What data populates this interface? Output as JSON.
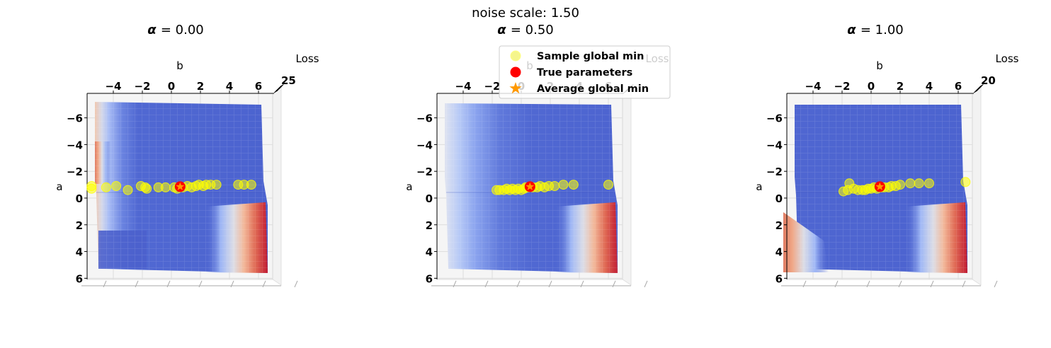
{
  "figure": {
    "suptitle": "noise scale: 1.50"
  },
  "legend": {
    "entries": [
      {
        "label": "Sample global min",
        "marker": "circle",
        "color": "#f5f58c"
      },
      {
        "label": "True parameters",
        "marker": "circle",
        "color": "#ff0000"
      },
      {
        "label": "Average global min",
        "marker": "star",
        "color": "#ff9900"
      }
    ]
  },
  "colors": {
    "surface_low": "#4a62d0",
    "surface_high": "#c11b32",
    "sample_points": "#ffff00",
    "true_parameters": "#ff0000",
    "average_min": "#ff9900"
  },
  "chart_data": [
    {
      "type": "scatter",
      "title_symbol": "α",
      "title_value": "= 0.00",
      "xlabel": "b",
      "ylabel": "a",
      "zlabel": "Loss",
      "view": "top-down 3D surface",
      "xlim": [
        -6,
        7
      ],
      "ylim": [
        6,
        -7.5
      ],
      "x_ticks": [
        "−4",
        "−2",
        "0",
        "2",
        "4",
        "6"
      ],
      "y_ticks": [
        "−6",
        "−4",
        "−2",
        "0",
        "2",
        "4",
        "6"
      ],
      "z_ticks_text": "25",
      "surface_colormap": "coolwarm",
      "surface_hot_regions": [
        "left edge near a = -2 to 0",
        "bottom-right corner (b ≈ 6, a ≈ 1 to 6)"
      ],
      "samples": [
        [
          -5.5,
          -0.9
        ],
        [
          -5.5,
          -0.7
        ],
        [
          -4.5,
          -0.8
        ],
        [
          -3.8,
          -0.9
        ],
        [
          -3.0,
          -0.6
        ],
        [
          -2.1,
          -0.9
        ],
        [
          -1.8,
          -0.8
        ],
        [
          -1.7,
          -0.7
        ],
        [
          -0.9,
          -0.8
        ],
        [
          -0.4,
          -0.8
        ],
        [
          0.2,
          -0.8
        ],
        [
          0.4,
          -0.7
        ],
        [
          0.8,
          -0.8
        ],
        [
          1.1,
          -0.9
        ],
        [
          1.4,
          -0.8
        ],
        [
          1.7,
          -0.9
        ],
        [
          1.9,
          -1.0
        ],
        [
          2.2,
          -0.9
        ],
        [
          2.4,
          -1.0
        ],
        [
          2.7,
          -1.0
        ],
        [
          3.1,
          -1.0
        ],
        [
          4.6,
          -1.0
        ],
        [
          5.0,
          -1.0
        ],
        [
          5.5,
          -1.0
        ]
      ],
      "true_parameters": [
        0.6,
        -0.85
      ],
      "average_global_min": [
        0.6,
        -0.85
      ]
    },
    {
      "type": "scatter",
      "title_symbol": "α",
      "title_value": "= 0.50",
      "xlabel": "b",
      "ylabel": "a",
      "zlabel": "Loss",
      "view": "top-down 3D surface",
      "xlim": [
        -6,
        7
      ],
      "ylim": [
        6,
        -7.5
      ],
      "x_ticks": [
        "−4",
        "−2",
        "0",
        "2",
        "4",
        "6"
      ],
      "y_ticks": [
        "−6",
        "−4",
        "−2",
        "0",
        "2",
        "4",
        "6"
      ],
      "z_ticks_text": "",
      "surface_colormap": "coolwarm",
      "surface_hot_regions": [
        "left edge a = -5 to 2 (light)",
        "bottom-right corner (b ≈ 6, a ≈ 1 to 6)"
      ],
      "samples": [
        [
          -1.7,
          -0.6
        ],
        [
          -1.5,
          -0.6
        ],
        [
          -1.2,
          -0.6
        ],
        [
          -1.0,
          -0.7
        ],
        [
          -0.8,
          -0.6
        ],
        [
          -0.6,
          -0.7
        ],
        [
          -0.4,
          -0.6
        ],
        [
          -0.2,
          -0.7
        ],
        [
          0.0,
          -0.6
        ],
        [
          0.2,
          -0.7
        ],
        [
          0.3,
          -0.8
        ],
        [
          0.5,
          -0.8
        ],
        [
          0.8,
          -0.8
        ],
        [
          1.1,
          -0.8
        ],
        [
          1.3,
          -0.9
        ],
        [
          1.6,
          -0.8
        ],
        [
          1.9,
          -0.9
        ],
        [
          2.3,
          -0.9
        ],
        [
          2.9,
          -1.0
        ],
        [
          3.6,
          -1.0
        ],
        [
          6.0,
          -1.0
        ]
      ],
      "true_parameters": [
        0.6,
        -0.85
      ],
      "average_global_min": [
        0.6,
        -0.85
      ]
    },
    {
      "type": "scatter",
      "title_symbol": "α",
      "title_value": "= 1.00",
      "xlabel": "b",
      "ylabel": "a",
      "zlabel": "Loss",
      "view": "top-down 3D surface",
      "xlim": [
        -6,
        7
      ],
      "ylim": [
        6,
        -7.5
      ],
      "x_ticks": [
        "−4",
        "−2",
        "0",
        "2",
        "4",
        "6"
      ],
      "y_ticks": [
        "−6",
        "−4",
        "−2",
        "0",
        "2",
        "4",
        "6"
      ],
      "z_ticks_text": "20",
      "surface_colormap": "coolwarm",
      "surface_hot_regions": [
        "bottom-left corner (b ≈ -6, a ≈ 2 to 6)",
        "bottom-right corner (b ≈ 6, a ≈ 1 to 6)"
      ],
      "samples": [
        [
          -1.9,
          -0.5
        ],
        [
          -1.6,
          -0.6
        ],
        [
          -1.5,
          -1.1
        ],
        [
          -1.2,
          -0.7
        ],
        [
          -0.9,
          -0.6
        ],
        [
          -0.6,
          -0.6
        ],
        [
          -0.4,
          -0.6
        ],
        [
          -0.2,
          -0.7
        ],
        [
          0.0,
          -0.7
        ],
        [
          0.2,
          -0.8
        ],
        [
          0.4,
          -0.7
        ],
        [
          0.7,
          -0.8
        ],
        [
          0.9,
          -0.8
        ],
        [
          1.2,
          -0.8
        ],
        [
          1.4,
          -0.9
        ],
        [
          1.7,
          -0.9
        ],
        [
          2.0,
          -1.0
        ],
        [
          2.7,
          -1.1
        ],
        [
          3.3,
          -1.1
        ],
        [
          4.0,
          -1.1
        ],
        [
          6.5,
          -1.2
        ]
      ],
      "true_parameters": [
        0.6,
        -0.85
      ],
      "average_global_min": [
        0.6,
        -0.85
      ]
    }
  ]
}
